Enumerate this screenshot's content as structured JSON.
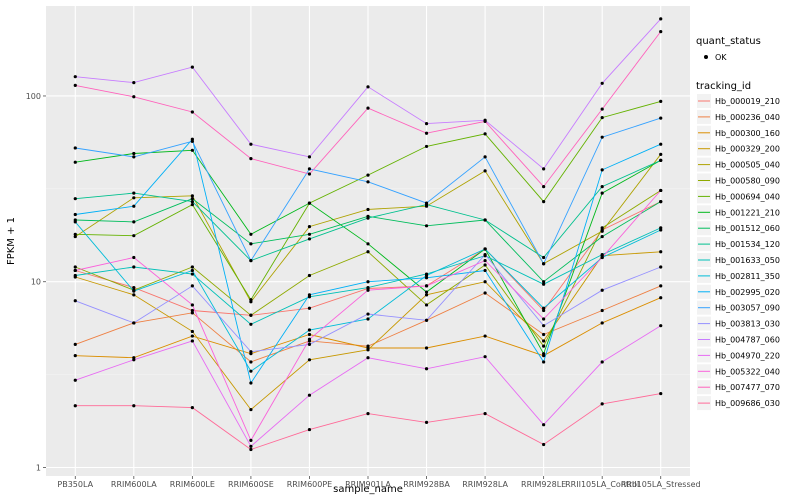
{
  "chart_data": {
    "type": "line",
    "xlabel": "sample_name",
    "ylabel": "FPKM + 1",
    "yscale": "log10",
    "ylim": [
      1,
      300
    ],
    "yticks": [
      1,
      10,
      100
    ],
    "grid": true,
    "legend_position": "right",
    "categories": [
      "PB350LA",
      "RRIM600LA",
      "RRIM600LE",
      "RRIM600SE",
      "RRIM600PE",
      "RRIM901LA",
      "RRIM928BA",
      "RRIM928LA",
      "RRIM928LE",
      "RRII105LA_Control",
      "RRII105LA_Stressed"
    ],
    "shape_legend": {
      "title": "quant_status",
      "items": [
        "OK"
      ]
    },
    "color_legend_title": "tracking_id",
    "series": [
      {
        "name": "Hb_000019_210",
        "color": "#F8766D",
        "values": [
          11.5,
          9.3,
          7.0,
          6.6,
          7.2,
          9.2,
          9.5,
          15.0,
          7.0,
          19.0,
          27.0
        ]
      },
      {
        "name": "Hb_000236_040",
        "color": "#EE8044",
        "values": [
          4.6,
          6.0,
          6.8,
          3.7,
          4.8,
          4.5,
          6.2,
          8.7,
          5.2,
          7.0,
          9.5
        ]
      },
      {
        "name": "Hb_000300_160",
        "color": "#DB8E00",
        "values": [
          4.0,
          3.9,
          5.1,
          4.1,
          5.2,
          4.4,
          4.4,
          5.1,
          4.0,
          6.0,
          8.2
        ]
      },
      {
        "name": "Hb_000329_200",
        "color": "#C79800",
        "values": [
          10.6,
          8.5,
          5.4,
          2.05,
          3.8,
          4.3,
          8.5,
          10.0,
          4.8,
          13.8,
          14.5
        ]
      },
      {
        "name": "Hb_000505_040",
        "color": "#AEA200",
        "values": [
          17.5,
          28.3,
          29.0,
          7.8,
          19.8,
          24.5,
          25.5,
          39.5,
          12.5,
          18.7,
          48.5
        ]
      },
      {
        "name": "Hb_000580_090",
        "color": "#8FAA00",
        "values": [
          12.0,
          9.0,
          12.0,
          6.6,
          10.8,
          14.5,
          7.5,
          12.3,
          4.5,
          19.5,
          31.0
        ]
      },
      {
        "name": "Hb_000694_040",
        "color": "#64B200",
        "values": [
          18.0,
          17.7,
          26.0,
          8.0,
          26.5,
          37.5,
          53.5,
          62.5,
          27.0,
          76.5,
          93.5
        ]
      },
      {
        "name": "Hb_001221_210",
        "color": "#00B81B",
        "values": [
          44.0,
          49.0,
          51.0,
          18.0,
          26.5,
          16.0,
          8.8,
          15.0,
          4.1,
          30.0,
          45.0
        ]
      },
      {
        "name": "Hb_001512_060",
        "color": "#00BD5C",
        "values": [
          21.5,
          21.0,
          28.0,
          16.0,
          18.0,
          22.5,
          20.0,
          21.5,
          10.0,
          17.5,
          27.0
        ]
      },
      {
        "name": "Hb_001534_120",
        "color": "#00C08E",
        "values": [
          28.0,
          30.0,
          27.0,
          13.0,
          17.0,
          22.0,
          26.0,
          21.5,
          13.5,
          32.5,
          45.0
        ]
      },
      {
        "name": "Hb_001633_050",
        "color": "#00C0B8",
        "values": [
          10.8,
          12.0,
          11.0,
          5.9,
          8.3,
          9.3,
          11.0,
          13.8,
          9.7,
          14.0,
          19.5
        ]
      },
      {
        "name": "Hb_002811_350",
        "color": "#00BCD8",
        "values": [
          21.0,
          8.9,
          11.5,
          3.3,
          5.5,
          6.3,
          10.8,
          15.0,
          7.2,
          13.5,
          19.0
        ]
      },
      {
        "name": "Hb_002995_020",
        "color": "#00B0F6",
        "values": [
          23.0,
          25.5,
          58.5,
          2.85,
          8.5,
          10.0,
          10.5,
          11.5,
          3.7,
          40.0,
          55.0
        ]
      },
      {
        "name": "Hb_003057_090",
        "color": "#35A2FF",
        "values": [
          52.5,
          47.0,
          57.0,
          13.0,
          40.5,
          34.5,
          26.5,
          47.0,
          12.5,
          60.0,
          76.0
        ]
      },
      {
        "name": "Hb_003813_030",
        "color": "#9590FF",
        "values": [
          7.9,
          6.0,
          9.5,
          4.2,
          4.6,
          6.7,
          6.2,
          14.0,
          5.8,
          9.0,
          12.0
        ]
      },
      {
        "name": "Hb_004787_060",
        "color": "#C77CFF",
        "values": [
          127.0,
          118.0,
          143.0,
          55.0,
          47.0,
          112.0,
          71.0,
          74.0,
          40.5,
          117.0,
          260.0
        ]
      },
      {
        "name": "Hb_004970_220",
        "color": "#E76BF3",
        "values": [
          2.95,
          3.8,
          4.8,
          1.3,
          2.45,
          3.9,
          3.4,
          3.95,
          1.7,
          3.7,
          5.8
        ]
      },
      {
        "name": "Hb_005322_040",
        "color": "#FA62DB",
        "values": [
          11.5,
          13.5,
          7.5,
          1.4,
          4.9,
          9.0,
          9.5,
          13.0,
          6.3,
          13.5,
          31.0
        ]
      },
      {
        "name": "Hb_007477_070",
        "color": "#FF62BC",
        "values": [
          114.0,
          99.0,
          82.0,
          46.0,
          38.0,
          86.0,
          63.0,
          73.0,
          32.5,
          85.0,
          222.0
        ]
      },
      {
        "name": "Hb_009686_030",
        "color": "#FF6A98",
        "values": [
          2.15,
          2.15,
          2.1,
          1.25,
          1.6,
          1.95,
          1.75,
          1.95,
          1.33,
          2.2,
          2.5
        ]
      }
    ]
  }
}
